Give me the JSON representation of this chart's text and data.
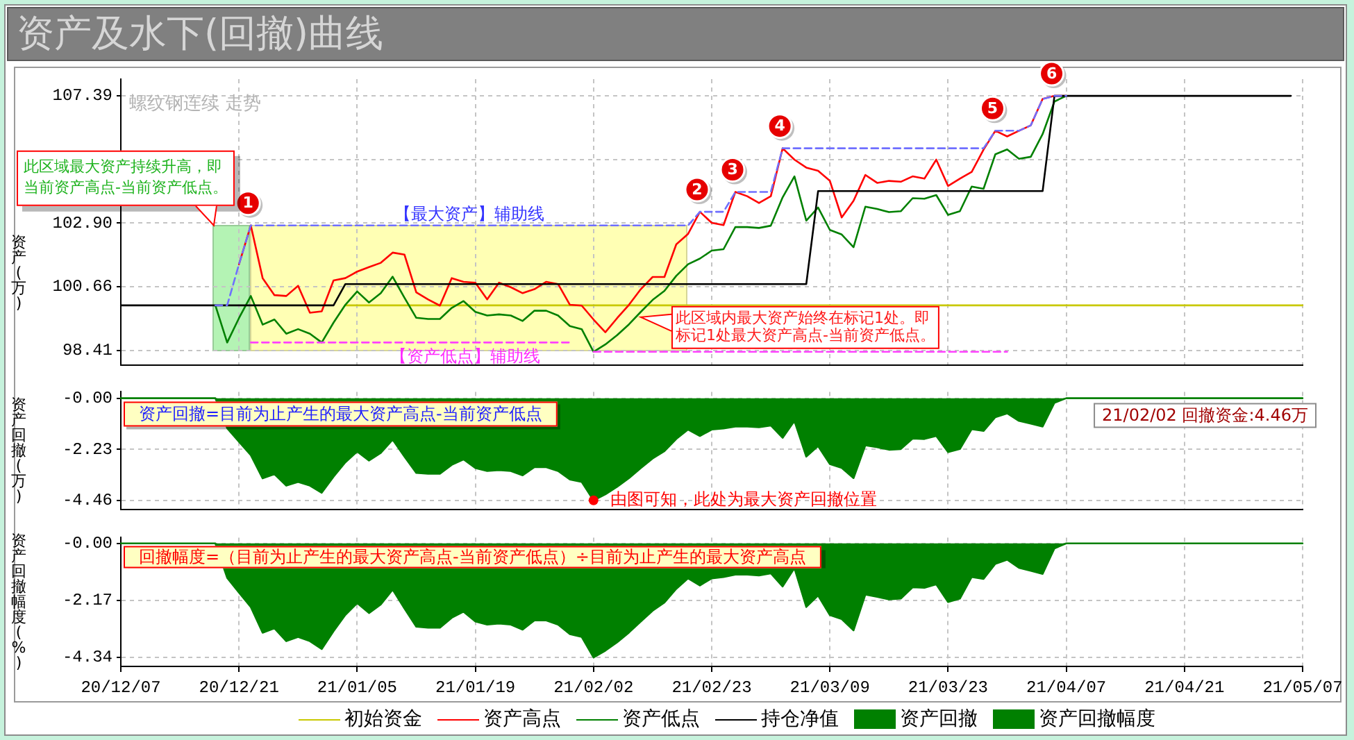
{
  "chart_data": [
    {
      "type": "line",
      "title": "资产及水下(回撤)曲线",
      "ylabel": "资产(万)",
      "categories": [
        "20/12/07",
        null,
        null,
        null,
        null,
        null,
        null,
        null,
        null,
        null,
        "20/12/21",
        null,
        null,
        null,
        null,
        null,
        null,
        null,
        null,
        null,
        "21/01/05",
        null,
        null,
        null,
        null,
        null,
        null,
        null,
        null,
        null,
        "21/01/19",
        null,
        null,
        null,
        null,
        null,
        null,
        null,
        null,
        null,
        "21/02/02",
        null,
        null,
        null,
        null,
        null,
        null,
        null,
        null,
        null,
        "21/02/23",
        null,
        null,
        null,
        null,
        null,
        null,
        null,
        null,
        null,
        "21/03/09",
        null,
        null,
        null,
        null,
        null,
        null,
        null,
        null,
        null,
        "21/03/23",
        null,
        null,
        null,
        null,
        null,
        null,
        null,
        null,
        null,
        "21/04/07",
        null,
        null,
        null,
        null,
        null,
        null,
        null,
        null,
        null,
        "21/04/21",
        null,
        null,
        null,
        null,
        null,
        null,
        null,
        null,
        null,
        "21/05/07"
      ],
      "tick_labels": "y",
      "ylim": [
        97.9,
        107.98
      ],
      "yticks": [
        98.41,
        100.66,
        {
          "value": 102.9,
          "label": "102.90"
        },
        {
          "value": 105.15,
          "label": null
        },
        107.39
      ],
      "series": [
        {
          "name": "初始资金",
          "color": "#c8c800",
          "values": [
            null,
            null,
            null,
            null,
            null,
            null,
            null,
            null,
            null,
            null,
            null,
            null,
            null,
            null,
            null,
            null,
            null,
            null,
            null,
            100,
            100,
            100,
            100,
            100,
            100,
            100,
            100,
            100,
            100,
            100,
            100,
            100,
            100,
            100,
            100,
            100,
            100,
            100,
            100,
            100,
            100,
            100,
            100,
            100,
            100,
            100,
            100,
            100,
            100,
            100,
            100,
            100,
            100,
            100,
            100,
            100,
            100,
            100,
            100,
            100,
            100,
            100,
            100,
            100,
            100,
            100,
            100,
            100,
            100,
            100,
            100,
            100,
            100,
            100,
            100,
            100,
            100,
            100,
            100,
            100,
            100,
            100,
            100,
            100,
            100,
            100,
            100,
            100,
            100,
            100,
            100,
            100,
            100,
            100,
            100,
            100,
            100,
            100,
            100,
            100,
            100
          ]
        },
        {
          "name": "资产高点",
          "color": "#ff0000",
          "values": [
            null,
            null,
            null,
            null,
            null,
            null,
            null,
            null,
            null,
            null,
            101.45,
            102.82,
            100.96,
            100.36,
            100.33,
            100.69,
            99.74,
            99.79,
            100.88,
            100.96,
            101.19,
            101.35,
            101.5,
            101.86,
            101.79,
            100.46,
            100.21,
            99.99,
            100.96,
            100.83,
            100.8,
            100.21,
            100.8,
            100.64,
            100.43,
            100.57,
            100.83,
            100.75,
            100.02,
            99.99,
            99.5,
            99.05,
            99.55,
            100.02,
            100.57,
            101,
            101,
            102.15,
            102.52,
            103.3,
            102.91,
            102.83,
            104,
            103.85,
            103.61,
            103.85,
            105.54,
            105.14,
            104.86,
            104.75,
            104.39,
            103.1,
            103.69,
            104.6,
            104.32,
            104.39,
            104.36,
            104.55,
            104.47,
            105.14,
            104.21,
            104.47,
            104.71,
            105.49,
            106.16,
            105.96,
            106.16,
            106.35,
            107.28,
            107.39,
            107.39,
            null,
            null,
            null,
            null,
            null,
            null,
            null,
            null,
            null,
            null,
            null,
            null,
            null,
            null,
            null,
            null,
            null,
            null,
            null,
            null
          ]
        },
        {
          "name": "资产低点",
          "color": "#008000",
          "values": [
            null,
            null,
            null,
            null,
            null,
            null,
            null,
            null,
            100,
            98.69,
            99.55,
            100.33,
            99.32,
            99.5,
            99,
            99.16,
            99,
            98.69,
            99.39,
            100.02,
            100.49,
            100.1,
            100.43,
            101.01,
            100.27,
            99.56,
            99.52,
            99.52,
            99.91,
            100.15,
            99.77,
            99.64,
            99.68,
            99.64,
            99.45,
            99.81,
            99.81,
            99.64,
            99.27,
            99.16,
            98.36,
            98.62,
            98.95,
            99.33,
            99.77,
            100.19,
            100.51,
            101.04,
            101.45,
            101.65,
            101.93,
            101.98,
            102.76,
            102.76,
            102.73,
            102.81,
            103.81,
            104.55,
            102.99,
            103.45,
            102.66,
            102.5,
            102.05,
            103.48,
            103.4,
            103.29,
            103.32,
            103.78,
            103.76,
            103.89,
            103.19,
            103.32,
            104.19,
            104.11,
            105.33,
            105.5,
            105.17,
            105.24,
            106.04,
            107.19,
            107.39,
            null,
            null,
            null,
            null,
            null,
            null,
            null,
            null,
            null,
            null,
            null,
            null,
            null,
            null,
            null,
            null,
            null,
            null,
            null,
            null
          ]
        },
        {
          "name": "持仓净值",
          "color": "#000000",
          "values": [
            100,
            100,
            100,
            100,
            100,
            100,
            100,
            100,
            100,
            100,
            100,
            100,
            100,
            100,
            100,
            100,
            100,
            100,
            100,
            100.75,
            100.75,
            100.75,
            100.75,
            100.75,
            100.75,
            100.75,
            100.75,
            100.75,
            100.75,
            100.75,
            100.75,
            100.75,
            100.75,
            100.75,
            100.75,
            100.75,
            100.75,
            100.75,
            100.75,
            100.75,
            100.75,
            100.75,
            100.75,
            100.75,
            100.75,
            100.75,
            100.75,
            100.75,
            100.75,
            100.75,
            100.75,
            100.75,
            100.75,
            100.75,
            100.75,
            100.75,
            100.75,
            100.75,
            100.75,
            104.03,
            104.03,
            104.03,
            104.03,
            104.03,
            104.03,
            104.03,
            104.03,
            104.03,
            104.03,
            104.03,
            104.03,
            104.03,
            104.03,
            104.03,
            104.03,
            104.03,
            104.03,
            104.03,
            104.03,
            107.39,
            107.39,
            107.39,
            107.39,
            107.39,
            107.39,
            107.39,
            107.39,
            107.39,
            107.39,
            107.39,
            107.39,
            107.39,
            107.39,
            107.39,
            107.39,
            107.39,
            107.39,
            107.39,
            107.39,
            107.39,
            null
          ]
        },
        {
          "color": "#6f6fff",
          "line_style": "dashed",
          "values": [
            null,
            null,
            null,
            null,
            null,
            null,
            null,
            null,
            100,
            100,
            101.45,
            102.82,
            102.82,
            102.82,
            102.82,
            102.82,
            102.82,
            102.82,
            102.82,
            102.82,
            102.82,
            102.82,
            102.82,
            102.82,
            102.82,
            102.82,
            102.82,
            102.82,
            102.82,
            102.82,
            102.82,
            102.82,
            102.82,
            102.82,
            102.82,
            102.82,
            102.82,
            102.82,
            102.82,
            102.82,
            102.82,
            102.82,
            102.82,
            102.82,
            102.82,
            102.82,
            102.82,
            102.82,
            102.82,
            103.3,
            103.3,
            103.3,
            104,
            104,
            104,
            104,
            105.54,
            105.54,
            105.54,
            105.54,
            105.54,
            105.54,
            105.54,
            105.54,
            105.54,
            105.54,
            105.54,
            105.54,
            105.54,
            105.54,
            105.54,
            105.54,
            105.54,
            105.54,
            106.16,
            106.16,
            106.16,
            106.35,
            107.28,
            107.39,
            107.39,
            null,
            null,
            null,
            null,
            null,
            null,
            null,
            null,
            null,
            null,
            null,
            null,
            null,
            null,
            null,
            null,
            null,
            null,
            null,
            null
          ]
        },
        {
          "color": "#ff40ff",
          "line_style": "dashed",
          "values": [
            null,
            null,
            null,
            null,
            null,
            null,
            null,
            null,
            null,
            null,
            null,
            98.69,
            98.69,
            98.69,
            98.69,
            98.69,
            98.69,
            98.69,
            98.69,
            98.69,
            98.69,
            98.69,
            98.69,
            98.69,
            98.69,
            98.69,
            98.69,
            98.69,
            98.69,
            98.69,
            98.69,
            98.69,
            98.69,
            98.69,
            98.69,
            98.69,
            98.69,
            98.69,
            98.69,
            null,
            98.36,
            98.36,
            98.36,
            98.36,
            98.36,
            98.36,
            98.36,
            98.36,
            98.36,
            98.36,
            98.36,
            98.36,
            98.36,
            98.36,
            98.36,
            98.36,
            98.36,
            98.36,
            98.36,
            98.36,
            98.36,
            98.36,
            98.36,
            98.36,
            98.36,
            98.36,
            98.36,
            98.36,
            98.36,
            98.36,
            98.36,
            98.36,
            98.36,
            98.36,
            98.36,
            98.36,
            null,
            null,
            null,
            null,
            null,
            null,
            null,
            null,
            null,
            null,
            null,
            null,
            null,
            null,
            null,
            null,
            null,
            null,
            null,
            null,
            null,
            null,
            null,
            null,
            null
          ]
        }
      ],
      "annotations": [
        "螺纹钢连续 走势",
        {
          "text": "1",
          "y": 102.82
        },
        {
          "text": "2",
          "y": 103.3
        },
        {
          "text": "3",
          "y": 104
        },
        {
          "text": "4",
          "y": 105.54
        },
        {
          "text": "5",
          "y": 106.16
        },
        {
          "text": "6",
          "y": 107.39
        },
        "【最大资产】辅助线",
        "【资产低点】辅助线",
        "此区域最大资产持续升高，即当前资产高点-当前资产低点。",
        "此区域内最大资产始终在标记1处。即标记1处最大资产高点-当前资产低点。"
      ],
      "grid": true,
      "legend": "bottom"
    },
    {
      "type": "area",
      "ylabel": "资产回撤(万)",
      "categories": [
        "20/12/07",
        null,
        null,
        null,
        null,
        null,
        null,
        null,
        null,
        null,
        "20/12/21",
        null,
        null,
        null,
        null,
        null,
        null,
        null,
        null,
        null,
        "21/01/05",
        null,
        null,
        null,
        null,
        null,
        null,
        null,
        null,
        null,
        "21/01/19",
        null,
        null,
        null,
        null,
        null,
        null,
        null,
        null,
        null,
        "21/02/02",
        null,
        null,
        null,
        null,
        null,
        null,
        null,
        null,
        null,
        "21/02/23",
        null,
        null,
        null,
        null,
        null,
        null,
        null,
        null,
        null,
        "21/03/09",
        null,
        null,
        null,
        null,
        null,
        null,
        null,
        null,
        null,
        "21/03/23",
        null,
        null,
        null,
        null,
        null,
        null,
        null,
        null,
        null,
        "21/04/07",
        null,
        null,
        null,
        null,
        null,
        null,
        null,
        null,
        null,
        "21/04/21",
        null,
        null,
        null,
        null,
        null,
        null,
        null,
        null,
        null,
        "21/05/07"
      ],
      "tick_labels": "y",
      "ylim": [
        -4.85,
        0.28
      ],
      "yticks": [
        {
          "value": 0,
          "label": "-0.00"
        },
        -2.23,
        -4.46
      ],
      "series": [
        {
          "name": "资产回撤",
          "color": "#008000",
          "values": [
            0,
            0,
            0,
            0,
            0,
            0,
            0,
            0,
            0,
            -1.31,
            -1.9,
            -2.49,
            -3.5,
            -3.32,
            -3.82,
            -3.66,
            -3.82,
            -4.13,
            -3.43,
            -2.8,
            -2.33,
            -2.72,
            -2.39,
            -1.81,
            -2.55,
            -3.26,
            -3.3,
            -3.3,
            -2.91,
            -2.67,
            -3.05,
            -3.18,
            -3.14,
            -3.18,
            -3.37,
            -3.01,
            -3.01,
            -3.18,
            -3.55,
            -3.66,
            -4.46,
            -4.2,
            -3.87,
            -3.49,
            -3.05,
            -2.63,
            -2.31,
            -1.78,
            -1.37,
            -1.65,
            -1.37,
            -1.32,
            -1.24,
            -1.24,
            -1.27,
            -1.19,
            -1.73,
            -0.99,
            -2.55,
            -2.09,
            -2.88,
            -3.04,
            -3.49,
            -2.06,
            -2.14,
            -2.25,
            -2.22,
            -1.76,
            -1.78,
            -1.65,
            -2.35,
            -2.22,
            -1.35,
            -1.43,
            -0.83,
            -0.66,
            -0.99,
            -1.11,
            -1.24,
            -0.2,
            0,
            0,
            0,
            0,
            0,
            0,
            0,
            0,
            0,
            0,
            0,
            0,
            0,
            0,
            0,
            0,
            0,
            0,
            0,
            0,
            0
          ]
        },
        {
          "type": "scatter",
          "color": "#ff0000",
          "marker": "circle",
          "x": [
            "21/02/02"
          ],
          "values": [
            -4.46
          ]
        }
      ],
      "annotations": [
        "资产回撤=目前为止产生的最大资产高点-当前资产低点",
        {
          "text": "由图可知，此处为最大资产回撤位置",
          "x": "21/02/02",
          "y": -4.46
        },
        "21/02/02 回撤资金:4.46万"
      ],
      "grid": true,
      "legend": "bottom"
    },
    {
      "type": "area",
      "ylabel": "资产回撤幅度(%)",
      "categories": [
        "20/12/07",
        null,
        null,
        null,
        null,
        null,
        null,
        null,
        null,
        null,
        "20/12/21",
        null,
        null,
        null,
        null,
        null,
        null,
        null,
        null,
        null,
        "21/01/05",
        null,
        null,
        null,
        null,
        null,
        null,
        null,
        null,
        null,
        "21/01/19",
        null,
        null,
        null,
        null,
        null,
        null,
        null,
        null,
        null,
        "21/02/02",
        null,
        null,
        null,
        null,
        null,
        null,
        null,
        null,
        null,
        "21/02/23",
        null,
        null,
        null,
        null,
        null,
        null,
        null,
        null,
        null,
        "21/03/09",
        null,
        null,
        null,
        null,
        null,
        null,
        null,
        null,
        null,
        "21/03/23",
        null,
        null,
        null,
        null,
        null,
        null,
        null,
        null,
        null,
        "21/04/07",
        null,
        null,
        null,
        null,
        null,
        null,
        null,
        null,
        null,
        "21/04/21",
        null,
        null,
        null,
        null,
        null,
        null,
        null,
        null,
        null,
        "21/05/07"
      ],
      "ylim": [
        -4.68,
        0.22
      ],
      "yticks": [
        {
          "value": 0,
          "label": "-0.00"
        },
        -2.17,
        -4.34
      ],
      "series": [
        {
          "name": "资产回撤幅度",
          "color": "#008000",
          "values": [
            0,
            0,
            0,
            0,
            0,
            0,
            0,
            0,
            0,
            -1.31,
            -1.87,
            -2.42,
            -3.4,
            -3.23,
            -3.72,
            -3.56,
            -3.72,
            -4.02,
            -3.34,
            -2.72,
            -2.27,
            -2.65,
            -2.32,
            -1.76,
            -2.48,
            -3.17,
            -3.21,
            -3.21,
            -2.83,
            -2.6,
            -2.97,
            -3.09,
            -3.05,
            -3.09,
            -3.28,
            -2.93,
            -2.93,
            -3.09,
            -3.45,
            -3.56,
            -4.34,
            -4.08,
            -3.76,
            -3.39,
            -2.97,
            -2.56,
            -2.25,
            -1.73,
            -1.33,
            -1.6,
            -1.33,
            -1.28,
            -1.19,
            -1.19,
            -1.22,
            -1.14,
            -1.64,
            -0.94,
            -2.42,
            -1.98,
            -2.73,
            -2.88,
            -3.31,
            -1.95,
            -2.03,
            -2.13,
            -2.1,
            -1.67,
            -1.69,
            -1.56,
            -2.23,
            -2.1,
            -1.28,
            -1.35,
            -0.78,
            -0.62,
            -0.93,
            -1.04,
            -1.16,
            -0.19,
            0,
            0,
            0,
            0,
            0,
            0,
            0,
            0,
            0,
            0,
            0,
            0,
            0,
            0,
            0,
            0,
            0,
            0,
            0,
            0,
            0
          ]
        }
      ],
      "annotations": [
        "回撤幅度=（目前为止产生的最大资产高点-当前资产低点）÷目前为止产生的最大资产高点"
      ],
      "grid": true,
      "legend": "bottom"
    }
  ]
}
